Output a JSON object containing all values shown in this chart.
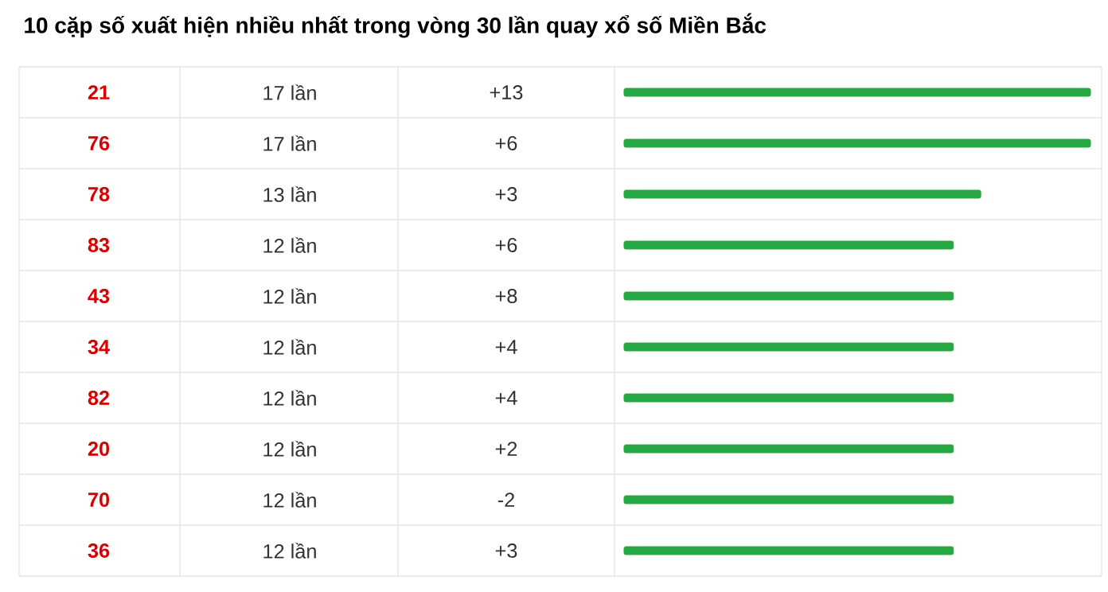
{
  "chart_data": {
    "type": "bar",
    "orientation": "horizontal",
    "title": "10 cặp số xuất hiện nhiều nhất trong vòng 30 lần quay xổ số Miền Bắc",
    "categories": [
      "21",
      "76",
      "78",
      "83",
      "43",
      "34",
      "82",
      "20",
      "70",
      "36"
    ],
    "values": [
      17,
      17,
      13,
      12,
      12,
      12,
      12,
      12,
      12,
      12
    ],
    "value_labels": [
      "17 lần",
      "17 lần",
      "13 lần",
      "12 lần",
      "12 lần",
      "12 lần",
      "12 lần",
      "12 lần",
      "12 lần",
      "12 lần"
    ],
    "annotations": [
      "+13",
      "+6",
      "+3",
      "+6",
      "+8",
      "+4",
      "+4",
      "+2",
      "-2",
      "+3"
    ],
    "color": "#28a745"
  }
}
